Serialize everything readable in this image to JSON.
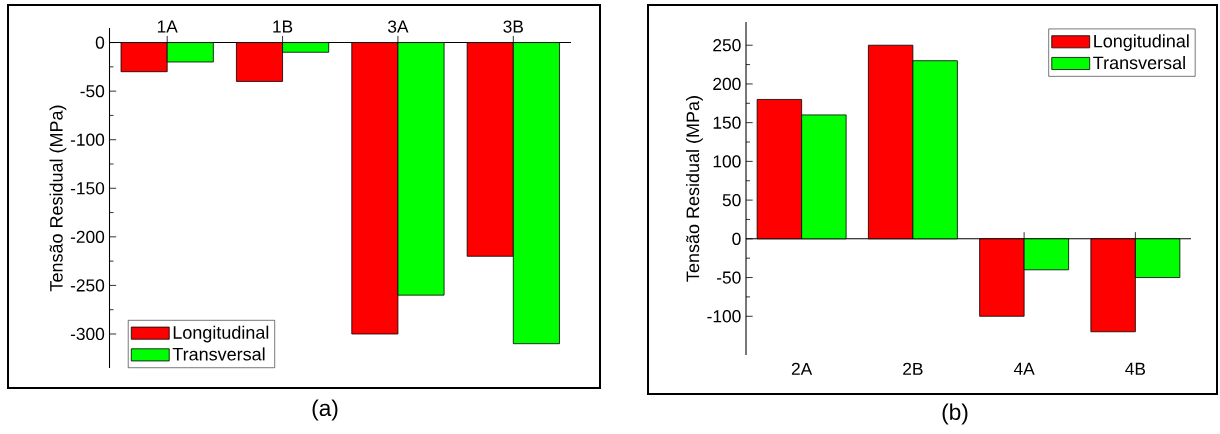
{
  "chart_data": [
    {
      "type": "bar",
      "categories": [
        "1A",
        "1B",
        "3A",
        "3B"
      ],
      "ylabel": "Tensão Residual (MPa)",
      "ylim": [
        -335,
        15
      ],
      "yticks": [
        0,
        -50,
        -100,
        -150,
        -200,
        -250,
        -300
      ],
      "legend": "bottom left",
      "annotations": [
        "(a)"
      ],
      "series": [
        {
          "name": "Longitudinal",
          "color": "#ff0000",
          "values": [
            -30,
            -40,
            -300,
            -220
          ]
        },
        {
          "name": "Transversal",
          "color": "#00ff00",
          "values": [
            -20,
            -10,
            -260,
            -310
          ]
        }
      ]
    },
    {
      "type": "bar",
      "categories": [
        "2A",
        "2B",
        "4A",
        "4B"
      ],
      "ylabel": "Tensão Residual (MPa)",
      "ylim": [
        -150,
        280
      ],
      "yticks": [
        -100,
        -50,
        0,
        50,
        100,
        150,
        200,
        250
      ],
      "legend": "top right",
      "annotations": [
        "(b)"
      ],
      "series": [
        {
          "name": "Longitudinal",
          "color": "#ff0000",
          "values": [
            180,
            250,
            -100,
            -120
          ]
        },
        {
          "name": "Transversal",
          "color": "#00ff00",
          "values": [
            160,
            230,
            -40,
            -50
          ]
        }
      ]
    }
  ]
}
